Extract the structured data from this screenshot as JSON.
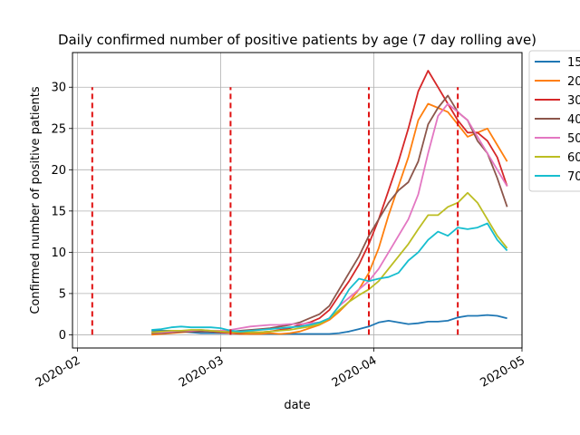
{
  "chart_data": {
    "type": "line",
    "title": "Daily confirmed number of positive patients by age (7 day rolling ave)",
    "xlabel": "date",
    "ylabel": "Confirmed number of positive patients",
    "x_ticks": [
      "2020-02",
      "2020-03",
      "2020-04",
      "2020-05"
    ],
    "y_ticks": [
      0,
      5,
      10,
      15,
      20,
      25,
      30
    ],
    "xlim": [
      "2020-01-31",
      "2020-05-01"
    ],
    "ylim": [
      -1.6,
      34.2
    ],
    "grid": true,
    "legend_position": "upper-right, outside axes",
    "vlines": {
      "dates": [
        "2020-02-04",
        "2020-03-03",
        "2020-03-31",
        "2020-04-18"
      ],
      "ymin": 0,
      "ymax": 30,
      "color": "#e01010",
      "style": "dashed"
    },
    "x": [
      "2020-02-16",
      "2020-02-18",
      "2020-02-20",
      "2020-02-22",
      "2020-02-24",
      "2020-02-26",
      "2020-02-28",
      "2020-03-01",
      "2020-03-03",
      "2020-03-05",
      "2020-03-07",
      "2020-03-09",
      "2020-03-11",
      "2020-03-13",
      "2020-03-15",
      "2020-03-17",
      "2020-03-19",
      "2020-03-21",
      "2020-03-23",
      "2020-03-25",
      "2020-03-27",
      "2020-03-29",
      "2020-03-31",
      "2020-04-02",
      "2020-04-04",
      "2020-04-06",
      "2020-04-08",
      "2020-04-10",
      "2020-04-12",
      "2020-04-14",
      "2020-04-16",
      "2020-04-18",
      "2020-04-20",
      "2020-04-22",
      "2020-04-24",
      "2020-04-26",
      "2020-04-28"
    ],
    "series": [
      {
        "name": "15",
        "color": "#1f77b4",
        "values": [
          0.5,
          0.5,
          0.5,
          0.4,
          0.3,
          0.2,
          0.2,
          0.2,
          0.2,
          0.2,
          0.1,
          0.1,
          0.1,
          0.1,
          0.1,
          0.1,
          0.1,
          0.1,
          0.1,
          0.2,
          0.4,
          0.7,
          1.0,
          1.5,
          1.7,
          1.5,
          1.3,
          1.4,
          1.6,
          1.6,
          1.7,
          2.1,
          2.3,
          2.3,
          2.4,
          2.3,
          2.0
        ]
      },
      {
        "name": "20",
        "color": "#ff7f0e",
        "values": [
          0.0,
          0.1,
          0.2,
          0.3,
          0.4,
          0.5,
          0.4,
          0.3,
          0.2,
          0.1,
          0.1,
          0.1,
          0.2,
          0.1,
          0.2,
          0.4,
          0.8,
          1.2,
          1.8,
          2.8,
          4.0,
          5.5,
          7.5,
          10.5,
          14.5,
          18.0,
          21.5,
          26.0,
          28.0,
          27.5,
          27.0,
          25.5,
          24.0,
          24.5,
          25.0,
          23.0,
          21.0
        ]
      },
      {
        "name": "30",
        "color": "#d62728",
        "values": [
          0.2,
          0.2,
          0.3,
          0.4,
          0.4,
          0.5,
          0.4,
          0.3,
          0.2,
          0.2,
          0.3,
          0.3,
          0.4,
          0.6,
          0.8,
          1.2,
          1.5,
          2.0,
          3.0,
          4.8,
          6.5,
          8.5,
          11.0,
          14.0,
          17.5,
          21.0,
          25.0,
          29.5,
          32.0,
          30.0,
          28.0,
          26.0,
          24.5,
          24.5,
          23.5,
          21.5,
          18.0
        ]
      },
      {
        "name": "40",
        "color": "#8c564b",
        "values": [
          0.2,
          0.2,
          0.3,
          0.4,
          0.4,
          0.4,
          0.4,
          0.4,
          0.4,
          0.5,
          0.6,
          0.7,
          0.8,
          1.0,
          1.2,
          1.5,
          2.0,
          2.5,
          3.5,
          5.5,
          7.5,
          9.5,
          12.0,
          14.0,
          16.0,
          17.5,
          18.5,
          21.0,
          25.5,
          27.5,
          29.0,
          27.0,
          26.0,
          23.5,
          22.0,
          19.0,
          15.5
        ]
      },
      {
        "name": "50",
        "color": "#e377c2",
        "values": [
          0.3,
          0.3,
          0.4,
          0.5,
          0.5,
          0.6,
          0.5,
          0.5,
          0.6,
          0.8,
          1.0,
          1.1,
          1.2,
          1.2,
          1.3,
          1.3,
          1.4,
          1.5,
          2.0,
          3.5,
          4.5,
          5.5,
          6.5,
          8.0,
          10.0,
          12.0,
          14.0,
          17.0,
          22.0,
          26.5,
          28.0,
          27.0,
          26.0,
          24.0,
          22.0,
          20.0,
          18.0
        ]
      },
      {
        "name": "60",
        "color": "#bcbd22",
        "values": [
          0.3,
          0.4,
          0.5,
          0.5,
          0.6,
          0.6,
          0.5,
          0.4,
          0.3,
          0.3,
          0.3,
          0.3,
          0.4,
          0.5,
          0.6,
          0.8,
          1.0,
          1.3,
          2.0,
          3.0,
          4.0,
          4.8,
          5.5,
          6.5,
          8.0,
          9.5,
          11.0,
          12.8,
          14.5,
          14.5,
          15.5,
          16.0,
          17.2,
          16.0,
          14.0,
          12.0,
          10.5
        ]
      },
      {
        "name": "70",
        "color": "#17becf",
        "values": [
          0.6,
          0.7,
          0.9,
          1.0,
          0.9,
          0.9,
          0.9,
          0.8,
          0.5,
          0.4,
          0.5,
          0.6,
          0.7,
          0.8,
          0.9,
          1.0,
          1.2,
          1.5,
          2.0,
          3.5,
          5.5,
          6.8,
          6.5,
          6.8,
          7.0,
          7.5,
          9.0,
          10.0,
          11.5,
          12.5,
          12.0,
          13.0,
          12.8,
          13.0,
          13.5,
          11.5,
          10.2
        ]
      }
    ]
  }
}
